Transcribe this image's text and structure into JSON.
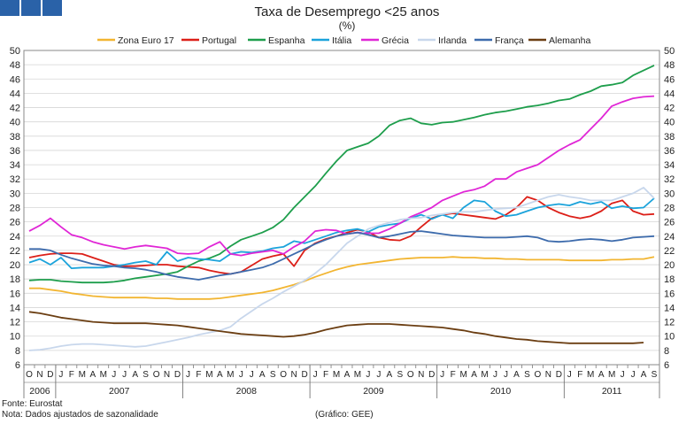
{
  "footer": {
    "source": "Fonte: Eurostat",
    "note": "Nota: Dados ajustados de sazonalidade",
    "credit": "(Gráfico: GEE)"
  },
  "chart_data": {
    "type": "line",
    "title": "Taxa de Desemprego <25 anos",
    "subtitle": "(%)",
    "ylim": [
      6,
      50
    ],
    "yticks": [
      6,
      8,
      10,
      12,
      14,
      16,
      18,
      20,
      22,
      24,
      26,
      28,
      30,
      32,
      34,
      36,
      38,
      40,
      42,
      44,
      46,
      48,
      50
    ],
    "x_months": [
      "O",
      "N",
      "D",
      "J",
      "F",
      "M",
      "A",
      "M",
      "J",
      "J",
      "A",
      "S",
      "O",
      "N",
      "D",
      "J",
      "F",
      "M",
      "A",
      "M",
      "J",
      "J",
      "A",
      "S",
      "O",
      "N",
      "D",
      "J",
      "F",
      "M",
      "A",
      "M",
      "J",
      "J",
      "A",
      "S",
      "O",
      "N",
      "D",
      "J",
      "F",
      "M",
      "A",
      "M",
      "J",
      "J",
      "A",
      "S",
      "O",
      "N",
      "D",
      "J",
      "F",
      "M",
      "A",
      "M",
      "J",
      "J",
      "A",
      "S"
    ],
    "years": [
      {
        "label": "2006",
        "start": 0,
        "end": 2
      },
      {
        "label": "2007",
        "start": 3,
        "end": 14
      },
      {
        "label": "2008",
        "start": 15,
        "end": 26
      },
      {
        "label": "2009",
        "start": 27,
        "end": 38
      },
      {
        "label": "2010",
        "start": 39,
        "end": 50
      },
      {
        "label": "2011",
        "start": 51,
        "end": 59
      }
    ],
    "series": [
      {
        "name": "Zona Euro 17",
        "color": "#f2b531",
        "values": [
          16.7,
          16.7,
          16.5,
          16.3,
          16.0,
          15.8,
          15.6,
          15.5,
          15.4,
          15.4,
          15.4,
          15.4,
          15.3,
          15.3,
          15.2,
          15.2,
          15.2,
          15.2,
          15.3,
          15.5,
          15.7,
          15.9,
          16.1,
          16.4,
          16.8,
          17.2,
          17.7,
          18.3,
          18.8,
          19.3,
          19.7,
          20.0,
          20.2,
          20.4,
          20.6,
          20.8,
          20.9,
          21.0,
          21.0,
          21.0,
          21.1,
          21.0,
          21.0,
          20.9,
          20.9,
          20.8,
          20.8,
          20.7,
          20.7,
          20.7,
          20.7,
          20.6,
          20.6,
          20.6,
          20.6,
          20.7,
          20.7,
          20.8,
          20.8,
          21.1
        ]
      },
      {
        "name": "Portugal",
        "color": "#dc1f18",
        "values": [
          21.0,
          21.3,
          21.5,
          21.6,
          21.6,
          21.5,
          21.0,
          20.5,
          20.0,
          19.8,
          19.8,
          19.9,
          20.0,
          20.0,
          19.8,
          19.7,
          19.6,
          19.2,
          18.9,
          18.7,
          19.0,
          19.9,
          20.8,
          21.2,
          21.5,
          19.8,
          22.0,
          23.0,
          23.6,
          24.0,
          24.5,
          24.9,
          24.6,
          23.8,
          23.5,
          23.4,
          24.0,
          25.3,
          26.5,
          27.0,
          27.2,
          27.0,
          26.8,
          26.6,
          26.4,
          27.0,
          28.0,
          29.5,
          29.0,
          28.0,
          27.3,
          26.8,
          26.5,
          26.8,
          27.5,
          28.6,
          29.0,
          27.5,
          27.0,
          27.1
        ]
      },
      {
        "name": "Espanha",
        "color": "#1e9e4c",
        "values": [
          17.8,
          17.9,
          17.9,
          17.7,
          17.6,
          17.5,
          17.5,
          17.5,
          17.6,
          17.8,
          18.1,
          18.3,
          18.5,
          18.7,
          19.0,
          19.8,
          20.5,
          20.9,
          21.5,
          22.6,
          23.5,
          24.0,
          24.5,
          25.2,
          26.3,
          28.0,
          29.5,
          31.0,
          32.8,
          34.5,
          36.0,
          36.5,
          37.0,
          38.0,
          39.5,
          40.2,
          40.5,
          39.8,
          39.6,
          39.9,
          40.0,
          40.3,
          40.6,
          41.0,
          41.3,
          41.5,
          41.8,
          42.1,
          42.3,
          42.6,
          43.0,
          43.2,
          43.8,
          44.3,
          45.0,
          45.2,
          45.5,
          46.5,
          47.2,
          47.9
        ]
      },
      {
        "name": "Itália",
        "color": "#1ba3db",
        "values": [
          20.3,
          20.8,
          20.0,
          21.0,
          19.5,
          19.6,
          19.6,
          19.6,
          19.8,
          20.0,
          20.3,
          20.5,
          20.0,
          21.8,
          20.5,
          21.0,
          20.8,
          20.7,
          20.5,
          21.5,
          21.8,
          21.7,
          21.9,
          22.3,
          22.5,
          23.3,
          23.0,
          23.5,
          24.0,
          24.5,
          24.8,
          25.0,
          24.6,
          25.3,
          25.6,
          25.8,
          26.5,
          27.0,
          26.4,
          27.0,
          26.5,
          28.0,
          29.0,
          28.8,
          27.5,
          26.8,
          27.0,
          27.5,
          28.0,
          28.3,
          28.5,
          28.3,
          28.8,
          28.5,
          28.8,
          27.9,
          28.2,
          27.9,
          28.0,
          29.3
        ]
      },
      {
        "name": "Grécia",
        "color": "#e026d6",
        "values": [
          24.7,
          25.5,
          26.5,
          25.3,
          24.2,
          23.8,
          23.2,
          22.8,
          22.5,
          22.2,
          22.5,
          22.7,
          22.5,
          22.3,
          21.6,
          21.5,
          21.6,
          22.5,
          23.2,
          21.5,
          21.3,
          21.6,
          21.8,
          22.0,
          21.5,
          22.5,
          23.3,
          24.7,
          24.9,
          24.8,
          24.3,
          24.5,
          24.4,
          24.4,
          25.0,
          25.8,
          26.7,
          27.3,
          28.0,
          29.0,
          29.6,
          30.2,
          30.5,
          31.0,
          32.0,
          32.0,
          33.0,
          33.5,
          34.0,
          35.0,
          36.0,
          36.8,
          37.5,
          39.0,
          40.5,
          42.2,
          42.8,
          43.3,
          43.5,
          43.6
        ]
      },
      {
        "name": "Irlanda",
        "color": "#c8d7ec",
        "values": [
          8.0,
          8.1,
          8.3,
          8.6,
          8.8,
          8.9,
          8.9,
          8.8,
          8.7,
          8.6,
          8.5,
          8.6,
          8.9,
          9.2,
          9.5,
          9.8,
          10.2,
          10.5,
          10.8,
          11.3,
          12.5,
          13.5,
          14.5,
          15.3,
          16.2,
          17.0,
          17.8,
          18.8,
          20.0,
          21.5,
          23.0,
          24.0,
          25.0,
          25.5,
          25.9,
          26.3,
          26.5,
          26.6,
          26.9,
          27.1,
          27.3,
          27.4,
          27.4,
          27.6,
          27.8,
          27.9,
          28.0,
          28.5,
          29.0,
          29.5,
          29.8,
          29.5,
          29.3,
          29.0,
          29.0,
          29.0,
          29.5,
          30.0,
          30.8,
          29.3
        ]
      },
      {
        "name": "França",
        "color": "#3d6bac",
        "values": [
          22.2,
          22.2,
          22.0,
          21.4,
          20.9,
          20.5,
          20.1,
          19.9,
          19.8,
          19.6,
          19.5,
          19.3,
          19.0,
          18.6,
          18.3,
          18.1,
          17.9,
          18.2,
          18.5,
          18.7,
          19.0,
          19.3,
          19.6,
          20.1,
          20.8,
          21.5,
          22.2,
          22.9,
          23.5,
          24.0,
          24.3,
          24.5,
          24.2,
          23.8,
          24.0,
          24.3,
          24.6,
          24.7,
          24.5,
          24.3,
          24.1,
          24.0,
          23.9,
          23.8,
          23.8,
          23.8,
          23.9,
          24.0,
          23.8,
          23.3,
          23.2,
          23.3,
          23.5,
          23.6,
          23.5,
          23.3,
          23.5,
          23.8,
          23.9,
          24.0
        ]
      },
      {
        "name": "Alemanha",
        "color": "#6b3e12",
        "values": [
          13.4,
          13.2,
          12.9,
          12.6,
          12.4,
          12.2,
          12.0,
          11.9,
          11.8,
          11.8,
          11.8,
          11.8,
          11.7,
          11.6,
          11.5,
          11.3,
          11.1,
          10.9,
          10.7,
          10.5,
          10.3,
          10.2,
          10.1,
          10.0,
          9.9,
          10.0,
          10.2,
          10.5,
          10.9,
          11.2,
          11.5,
          11.6,
          11.7,
          11.7,
          11.7,
          11.6,
          11.5,
          11.4,
          11.3,
          11.2,
          11.0,
          10.8,
          10.5,
          10.3,
          10.0,
          9.8,
          9.6,
          9.5,
          9.3,
          9.2,
          9.1,
          9.0,
          9.0,
          9.0,
          9.0,
          9.0,
          9.0,
          9.0,
          9.1,
          null
        ]
      }
    ]
  }
}
